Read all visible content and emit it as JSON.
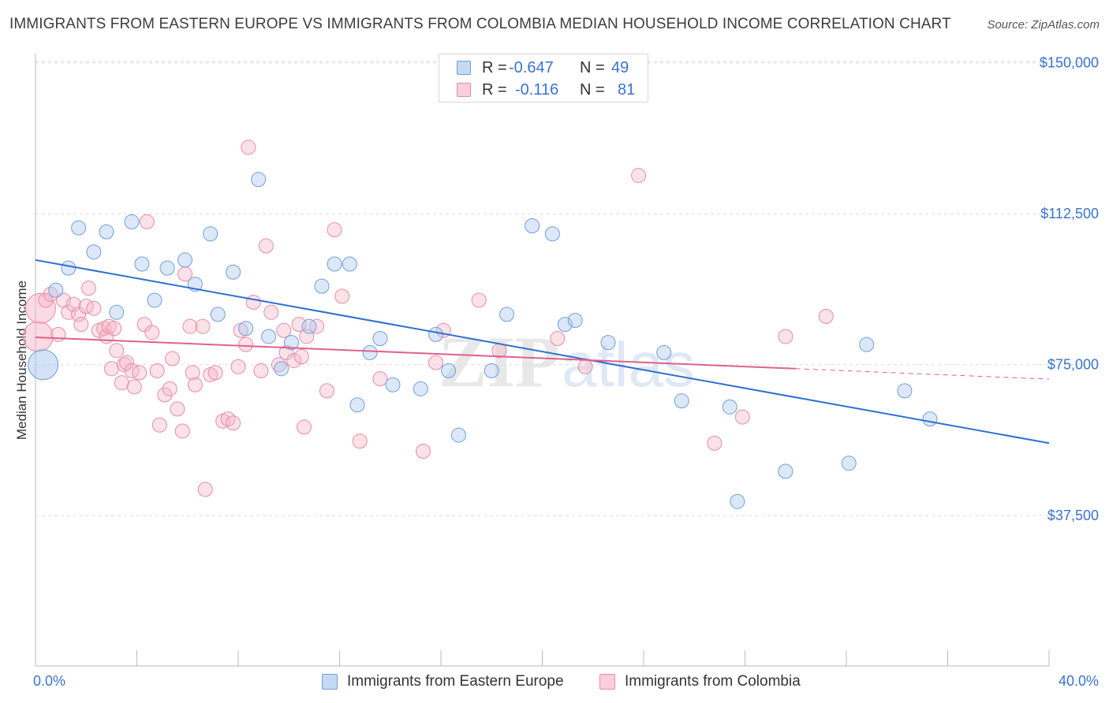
{
  "header": {
    "title": "IMMIGRANTS FROM EASTERN EUROPE VS IMMIGRANTS FROM COLOMBIA MEDIAN HOUSEHOLD INCOME CORRELATION CHART",
    "source": "Source: ZipAtlas.com"
  },
  "watermark": {
    "zip": "ZIP",
    "atlas": "atlas"
  },
  "legend": {
    "rows": [
      {
        "r_label": "R =",
        "r_value": "-0.647",
        "n_label": "N =",
        "n_value": "49",
        "color": "#a8c6ee"
      },
      {
        "r_label": "R =",
        "r_value": "-0.116",
        "n_label": "N =",
        "n_value": "81",
        "color": "#f5b6c9"
      }
    ]
  },
  "colors": {
    "blue_fill": "#a8c6ee",
    "blue_stroke": "#6f9fdc",
    "blue_line": "#2f6fd0",
    "pink_fill": "#f5b6c9",
    "pink_stroke": "#e98aa8",
    "pink_line": "#e0608c",
    "axis_text": "#3a73d0",
    "grid": "#dcdcdc"
  },
  "chart_data": {
    "type": "scatter",
    "title": "IMMIGRANTS FROM EASTERN EUROPE VS IMMIGRANTS FROM COLOMBIA MEDIAN HOUSEHOLD INCOME CORRELATION CHART",
    "xlabel": "",
    "ylabel": "Median Household Income",
    "xlim": [
      0,
      40
    ],
    "ylim": [
      0,
      155000
    ],
    "x_tick_labels": [
      "0.0%",
      "40.0%"
    ],
    "y_ticks": [
      37500,
      75000,
      112500,
      150000
    ],
    "y_tick_labels": [
      "$37,500",
      "$75,000",
      "$112,500",
      "$150,000"
    ],
    "grid": true,
    "legend_position": "bottom",
    "series": [
      {
        "name": "Immigrants from Eastern Europe",
        "color": "#a8c6ee",
        "trend": {
          "x": [
            0,
            40
          ],
          "y": [
            101000,
            55500
          ]
        },
        "points": [
          [
            0.3,
            75000,
            "large"
          ],
          [
            0.8,
            93500
          ],
          [
            1.3,
            99000
          ],
          [
            1.7,
            109000
          ],
          [
            2.3,
            103000
          ],
          [
            2.8,
            108000
          ],
          [
            3.2,
            88000
          ],
          [
            3.8,
            110500
          ],
          [
            4.2,
            100000
          ],
          [
            4.7,
            91000
          ],
          [
            5.2,
            99000
          ],
          [
            5.9,
            101000
          ],
          [
            6.3,
            95000
          ],
          [
            6.9,
            107500
          ],
          [
            7.2,
            87500
          ],
          [
            7.8,
            98000
          ],
          [
            8.3,
            84000
          ],
          [
            8.8,
            121000
          ],
          [
            9.2,
            82000
          ],
          [
            9.7,
            74000
          ],
          [
            10.1,
            80500
          ],
          [
            10.8,
            84500
          ],
          [
            11.3,
            94500
          ],
          [
            11.8,
            100000
          ],
          [
            12.4,
            100000
          ],
          [
            12.7,
            65000
          ],
          [
            13.2,
            78000
          ],
          [
            13.6,
            81500
          ],
          [
            14.1,
            70000
          ],
          [
            15.2,
            69000
          ],
          [
            15.8,
            82500
          ],
          [
            16.3,
            73500
          ],
          [
            16.7,
            57500
          ],
          [
            18.0,
            73500
          ],
          [
            18.6,
            87500
          ],
          [
            19.6,
            109500
          ],
          [
            20.4,
            107500
          ],
          [
            20.9,
            85000
          ],
          [
            21.3,
            86000
          ],
          [
            22.6,
            80500
          ],
          [
            24.8,
            78000
          ],
          [
            25.5,
            66000
          ],
          [
            27.4,
            64500
          ],
          [
            27.7,
            41000
          ],
          [
            29.6,
            48500
          ],
          [
            32.1,
            50500
          ],
          [
            32.8,
            80000
          ],
          [
            34.3,
            68500
          ],
          [
            35.3,
            61500
          ]
        ]
      },
      {
        "name": "Immigrants from Colombia",
        "color": "#f5b6c9",
        "trend": {
          "x": [
            0,
            30
          ],
          "y": [
            81800,
            74000
          ],
          "dash_to": [
            40,
            71400
          ]
        },
        "points": [
          [
            0.1,
            82000,
            "large"
          ],
          [
            0.2,
            89000,
            "large"
          ],
          [
            0.4,
            91000
          ],
          [
            0.6,
            92500
          ],
          [
            0.9,
            82500
          ],
          [
            1.1,
            91000
          ],
          [
            1.3,
            88000
          ],
          [
            1.5,
            90000
          ],
          [
            1.7,
            87500
          ],
          [
            1.8,
            85000
          ],
          [
            2.0,
            89500
          ],
          [
            2.1,
            94000
          ],
          [
            2.3,
            89000
          ],
          [
            2.5,
            83500
          ],
          [
            2.7,
            84000
          ],
          [
            2.8,
            82000
          ],
          [
            2.9,
            84500
          ],
          [
            3.1,
            84000
          ],
          [
            3.0,
            74000
          ],
          [
            3.2,
            78500
          ],
          [
            3.4,
            70500
          ],
          [
            3.5,
            75000
          ],
          [
            3.6,
            75500
          ],
          [
            3.8,
            73500
          ],
          [
            3.9,
            69500
          ],
          [
            4.1,
            73000
          ],
          [
            4.3,
            85000
          ],
          [
            4.4,
            110500
          ],
          [
            4.6,
            83000
          ],
          [
            4.8,
            73500
          ],
          [
            4.9,
            60000
          ],
          [
            5.1,
            67500
          ],
          [
            5.3,
            69000
          ],
          [
            5.4,
            76500
          ],
          [
            5.6,
            64000
          ],
          [
            5.8,
            58500
          ],
          [
            5.9,
            97500
          ],
          [
            6.1,
            84500
          ],
          [
            6.2,
            73000
          ],
          [
            6.3,
            70000
          ],
          [
            6.6,
            84500
          ],
          [
            6.7,
            44000
          ],
          [
            6.9,
            72500
          ],
          [
            7.1,
            73000
          ],
          [
            7.4,
            61000
          ],
          [
            7.6,
            61500
          ],
          [
            7.8,
            60500
          ],
          [
            8.0,
            74500
          ],
          [
            8.1,
            83500
          ],
          [
            8.3,
            80000
          ],
          [
            8.4,
            129000
          ],
          [
            8.6,
            90500
          ],
          [
            8.9,
            73500
          ],
          [
            9.1,
            104500
          ],
          [
            9.3,
            88000
          ],
          [
            9.6,
            75000
          ],
          [
            9.8,
            83500
          ],
          [
            9.9,
            78000
          ],
          [
            10.2,
            76000
          ],
          [
            10.4,
            85000
          ],
          [
            10.5,
            77000
          ],
          [
            10.6,
            59500
          ],
          [
            10.7,
            82000
          ],
          [
            11.1,
            84500
          ],
          [
            11.5,
            68500
          ],
          [
            11.8,
            108500
          ],
          [
            12.1,
            92000
          ],
          [
            12.8,
            56000
          ],
          [
            13.6,
            71500
          ],
          [
            15.3,
            53500
          ],
          [
            15.8,
            75500
          ],
          [
            16.1,
            83500
          ],
          [
            17.5,
            91000
          ],
          [
            18.3,
            78500
          ],
          [
            20.6,
            81500
          ],
          [
            21.7,
            74500
          ],
          [
            23.8,
            122000
          ],
          [
            26.8,
            55500
          ],
          [
            27.9,
            62000
          ],
          [
            29.6,
            82000
          ],
          [
            31.2,
            87000
          ]
        ]
      }
    ]
  }
}
